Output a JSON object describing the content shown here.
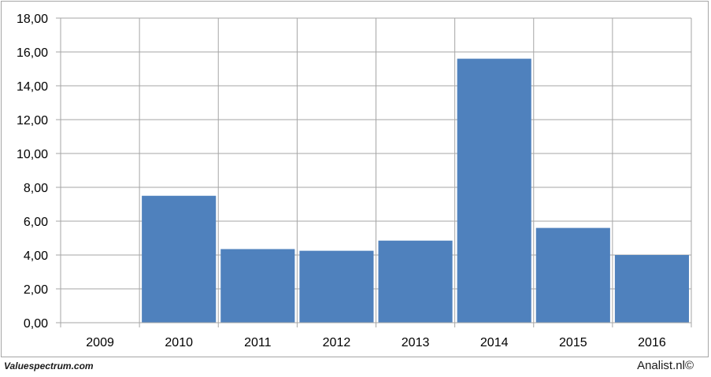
{
  "chart_data": {
    "type": "bar",
    "categories": [
      "2009",
      "2010",
      "2011",
      "2012",
      "2013",
      "2014",
      "2015",
      "2016"
    ],
    "values": [
      0,
      7.5,
      4.35,
      4.25,
      4.85,
      15.6,
      5.6,
      4.0
    ],
    "ylim": [
      0,
      18
    ],
    "yticks": [
      "0,00",
      "2,00",
      "4,00",
      "6,00",
      "8,00",
      "10,00",
      "12,00",
      "14,00",
      "16,00",
      "18,00"
    ],
    "grid": true,
    "bar_color": "#4f81bd",
    "grid_color": "#a6a6a6"
  },
  "footer": {
    "source_left": "Valuespectrum.com",
    "source_right": "Analist.nl©"
  }
}
